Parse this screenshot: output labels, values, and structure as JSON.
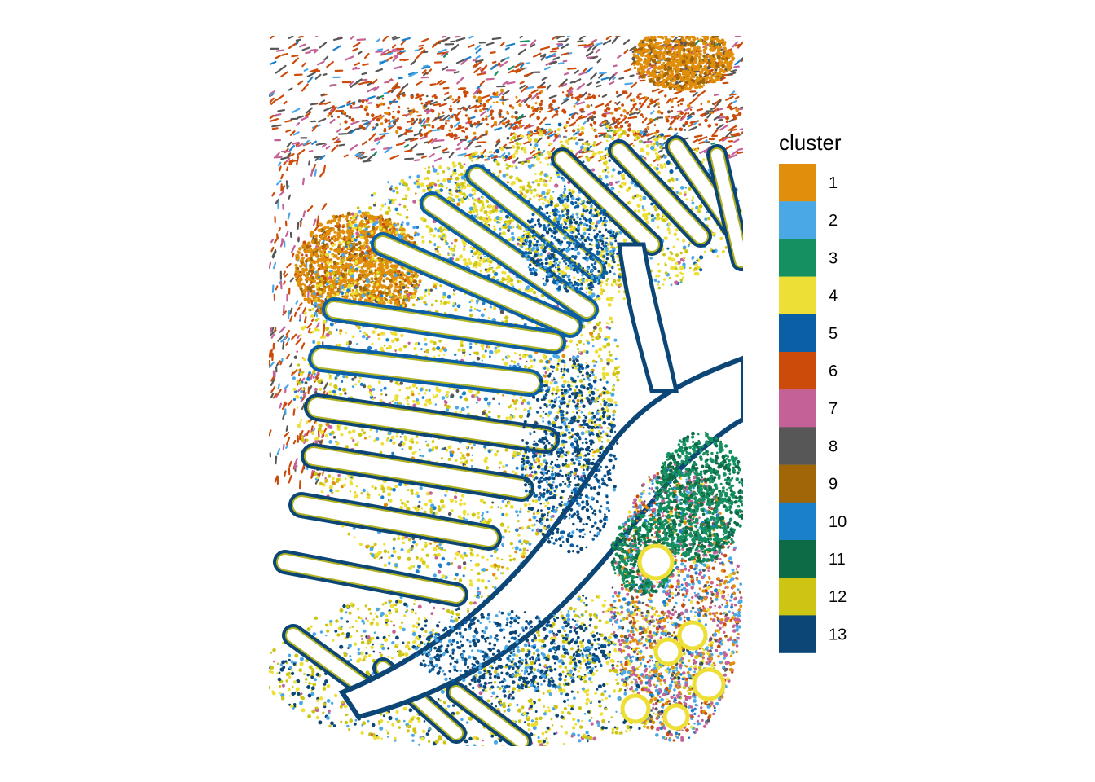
{
  "chart_data": {
    "type": "spatial_scatter",
    "title": "",
    "xlabel": "",
    "ylabel": "",
    "grid": false,
    "legend": {
      "title": "cluster",
      "placement": "right",
      "entries": [
        {
          "label": "1",
          "color": "#E08E0B"
        },
        {
          "label": "2",
          "color": "#4AA8E6"
        },
        {
          "label": "3",
          "color": "#159060"
        },
        {
          "label": "4",
          "color": "#EDDF36"
        },
        {
          "label": "5",
          "color": "#0B5FA5"
        },
        {
          "label": "6",
          "color": "#CC4A0A"
        },
        {
          "label": "7",
          "color": "#C46197"
        },
        {
          "label": "8",
          "color": "#575757"
        },
        {
          "label": "9",
          "color": "#A06608"
        },
        {
          "label": "10",
          "color": "#1B80CC"
        },
        {
          "label": "11",
          "color": "#0D6B46"
        },
        {
          "label": "12",
          "color": "#CDC413"
        },
        {
          "label": "13",
          "color": "#0B4676"
        }
      ]
    }
  }
}
